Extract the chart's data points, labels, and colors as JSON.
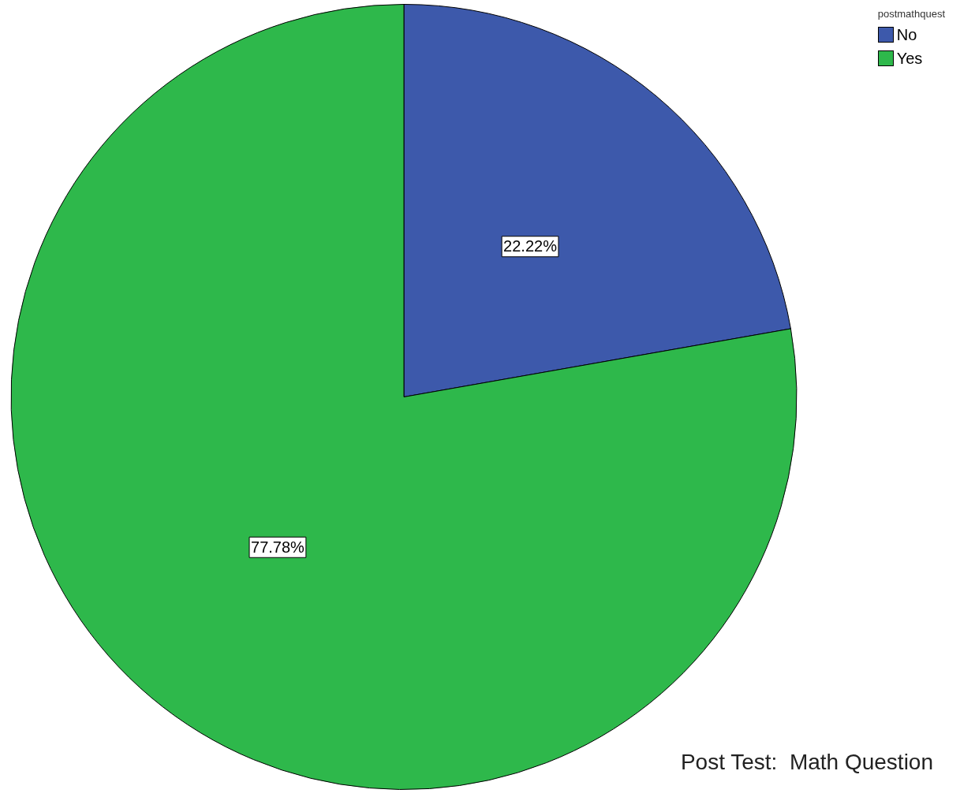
{
  "chart_data": {
    "type": "pie",
    "categories": [
      "No",
      "Yes"
    ],
    "values": [
      22.22,
      77.78
    ],
    "colors": [
      "#3d59ab",
      "#2eb84b"
    ],
    "value_labels": [
      "22.22%",
      "77.78%"
    ],
    "legend": "top right",
    "legend_title": "postmathquest",
    "annotations": [
      "Post Test:  Math Question"
    ]
  }
}
